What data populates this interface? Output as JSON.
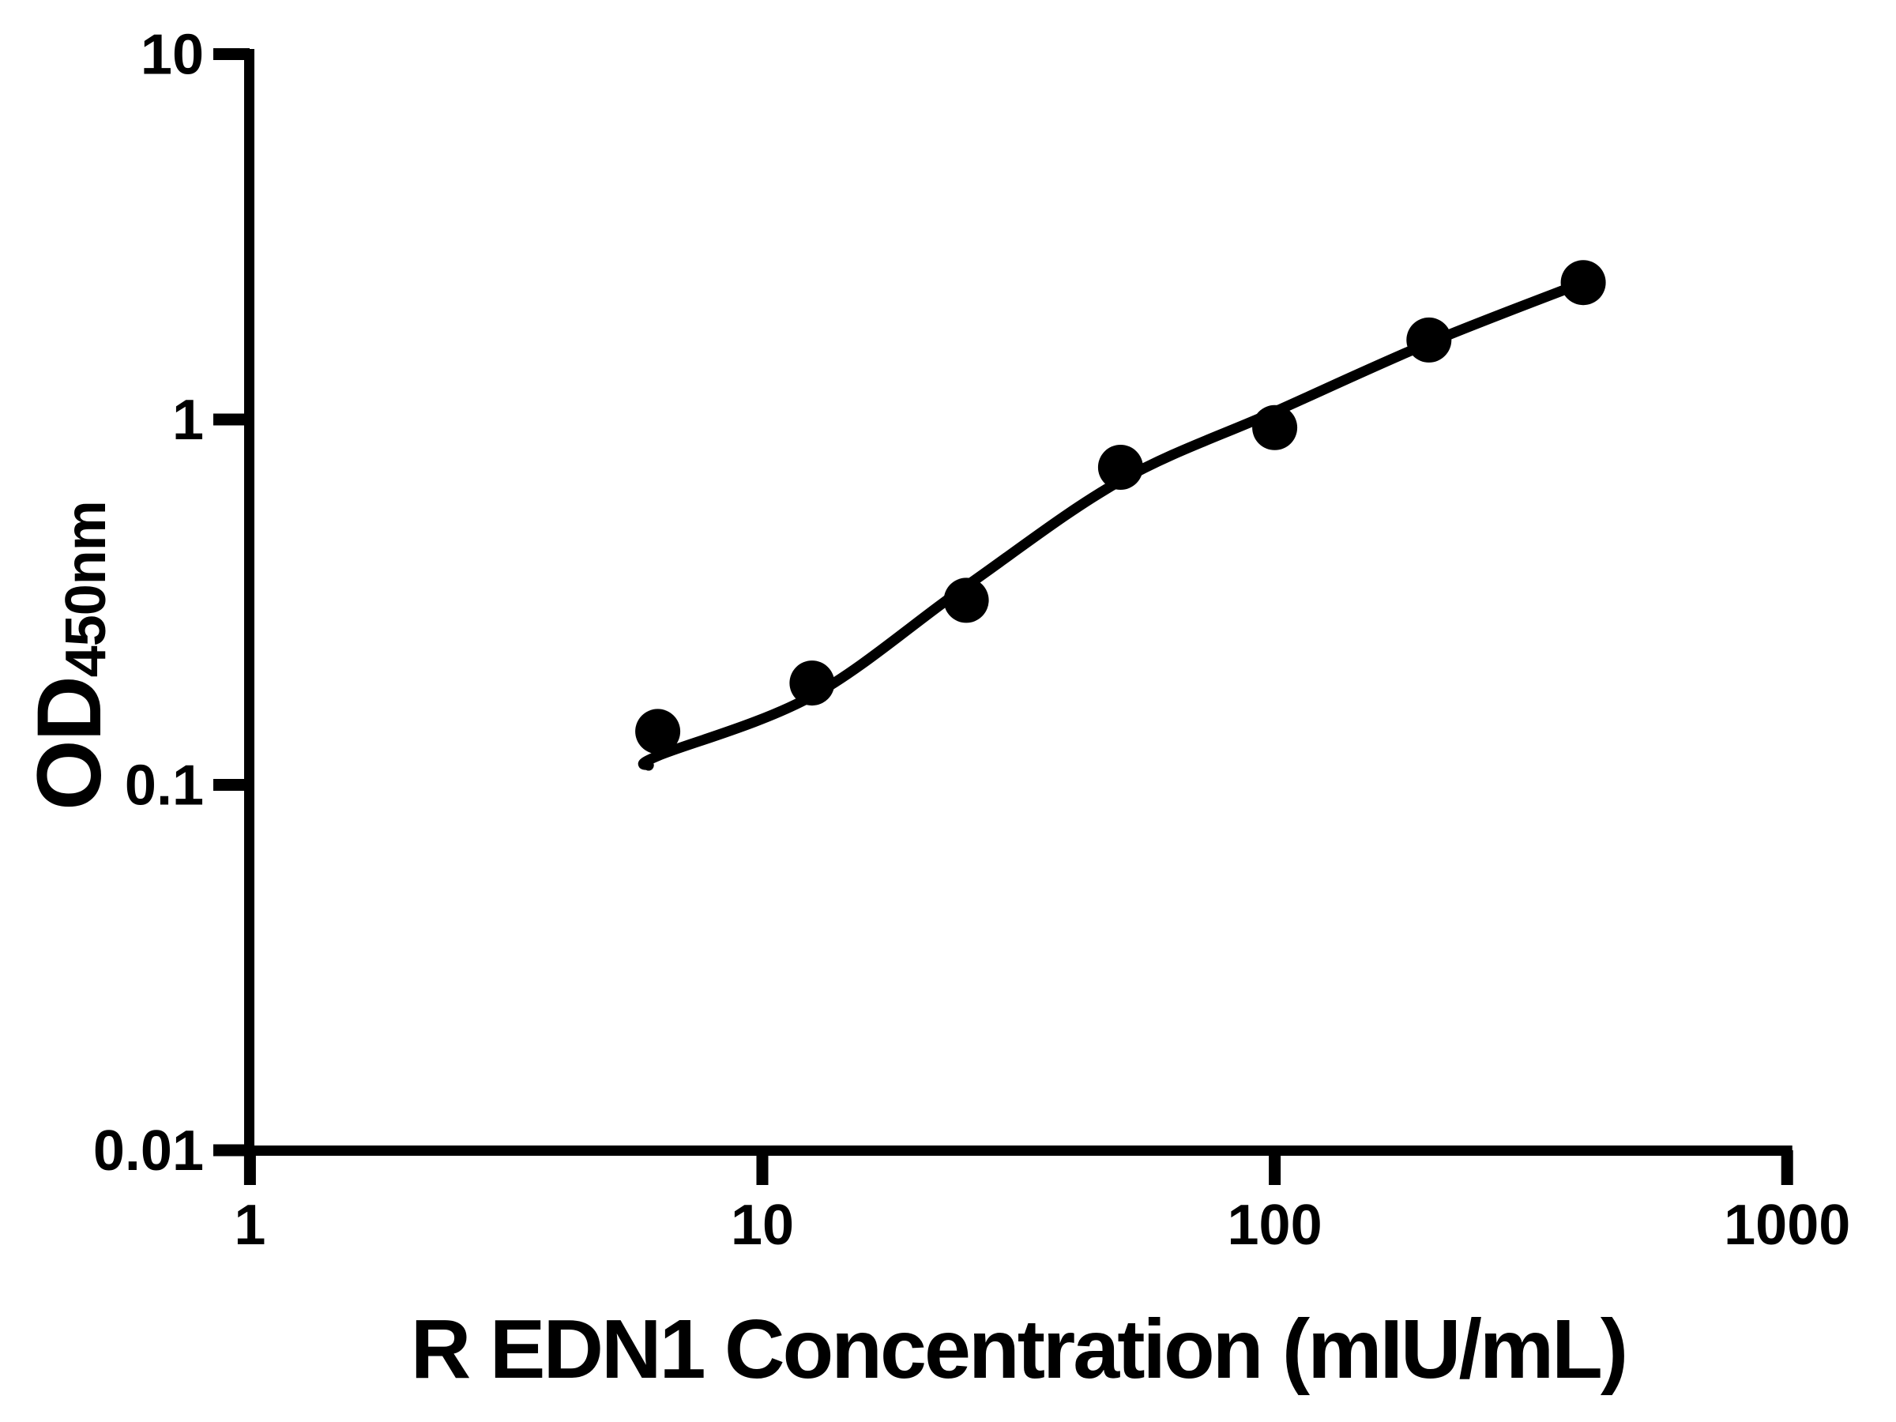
{
  "page": {
    "background_color": "#ffffff",
    "foreground_color": "#000000"
  },
  "chart_data": {
    "type": "scatter",
    "title": "",
    "xlabel": "R EDN1 Concentration (mIU/mL)",
    "ylabel_main": "OD",
    "ylabel_sub": "450nm",
    "x_scale": "log",
    "y_scale": "log",
    "xlim": [
      1,
      1000
    ],
    "ylim": [
      0.01,
      10
    ],
    "grid": false,
    "legend": null,
    "marker_color": "#000000",
    "line_color": "#000000",
    "x_ticks": [
      {
        "value": 1,
        "label": "1"
      },
      {
        "value": 10,
        "label": "10"
      },
      {
        "value": 100,
        "label": "100"
      },
      {
        "value": 1000,
        "label": "1000"
      }
    ],
    "y_ticks": [
      {
        "value": 10,
        "label": "10"
      },
      {
        "value": 1,
        "label": "1"
      },
      {
        "value": 0.1,
        "label": "0.1"
      },
      {
        "value": 0.01,
        "label": "0.01"
      }
    ],
    "points": [
      {
        "x": 6.25,
        "y": 0.14
      },
      {
        "x": 12.5,
        "y": 0.19
      },
      {
        "x": 25,
        "y": 0.32
      },
      {
        "x": 50,
        "y": 0.74
      },
      {
        "x": 100,
        "y": 0.95
      },
      {
        "x": 200,
        "y": 1.65
      },
      {
        "x": 400,
        "y": 2.37
      }
    ],
    "fit_curve": [
      {
        "x": 6.0,
        "y": 0.113
      },
      {
        "x": 6.25,
        "y": 0.12
      },
      {
        "x": 12.5,
        "y": 0.175
      },
      {
        "x": 25,
        "y": 0.35
      },
      {
        "x": 50,
        "y": 0.68
      },
      {
        "x": 100,
        "y": 1.05
      },
      {
        "x": 200,
        "y": 1.62
      },
      {
        "x": 400,
        "y": 2.37
      }
    ]
  }
}
